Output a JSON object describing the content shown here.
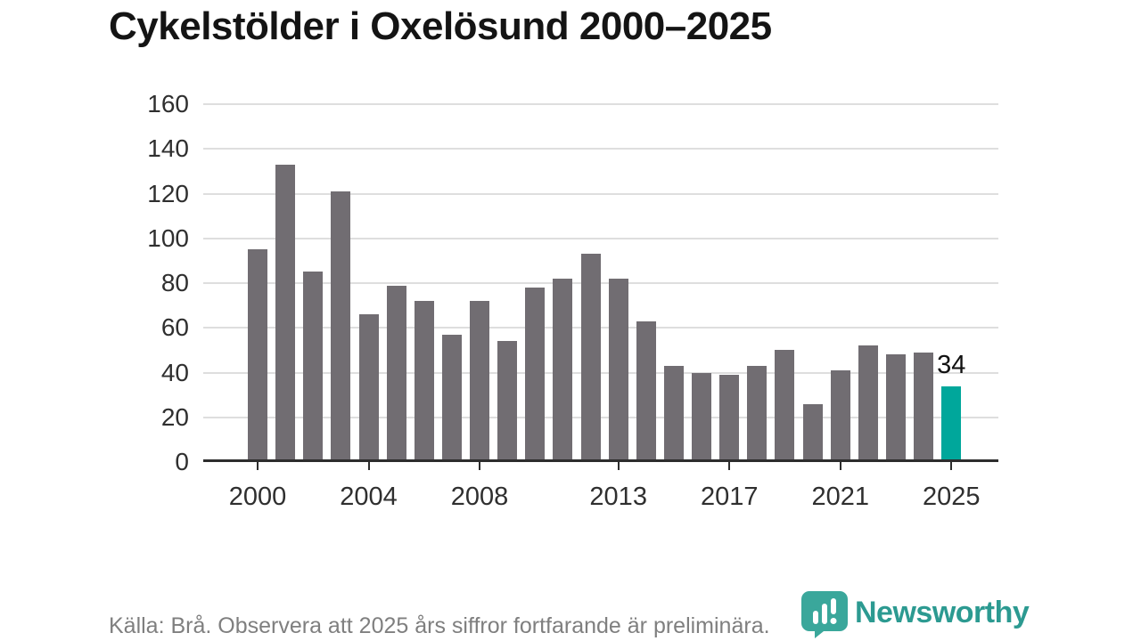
{
  "title": "Cykelstölder i Oxelösund 2000–2025",
  "annotation": {
    "last_value_label": "34"
  },
  "footer": {
    "source_note": "Källa: Brå. Observera att 2025 års siffror fortfarande är preliminära."
  },
  "logo": {
    "name": "Newsworthy",
    "color": "#2c9a91",
    "icon_color": "#3aa79b"
  },
  "colors": {
    "bar": "#716d72",
    "highlight": "#00a79b",
    "grid": "#dedede",
    "axis": "#2d2d2d",
    "text": "#2f2f2f",
    "muted": "#7f7f7f"
  },
  "chart_data": {
    "type": "bar",
    "title": "Cykelstölder i Oxelösund 2000–2025",
    "x": [
      2000,
      2001,
      2002,
      2003,
      2004,
      2005,
      2006,
      2007,
      2008,
      2009,
      2010,
      2011,
      2012,
      2013,
      2014,
      2015,
      2016,
      2017,
      2018,
      2019,
      2020,
      2021,
      2022,
      2023,
      2024,
      2025
    ],
    "values": [
      95,
      133,
      85,
      121,
      66,
      79,
      72,
      57,
      72,
      54,
      78,
      82,
      93,
      82,
      63,
      43,
      40,
      39,
      43,
      50,
      26,
      41,
      52,
      48,
      49,
      34
    ],
    "highlight_index": 25,
    "highlight_label": "34",
    "xlabel": "",
    "ylabel": "",
    "ylim": [
      0,
      160
    ],
    "yticks": [
      0,
      20,
      40,
      60,
      80,
      100,
      120,
      140,
      160
    ],
    "xticks": [
      2000,
      2004,
      2008,
      2013,
      2017,
      2021,
      2025
    ],
    "grid": true,
    "legend": false
  }
}
